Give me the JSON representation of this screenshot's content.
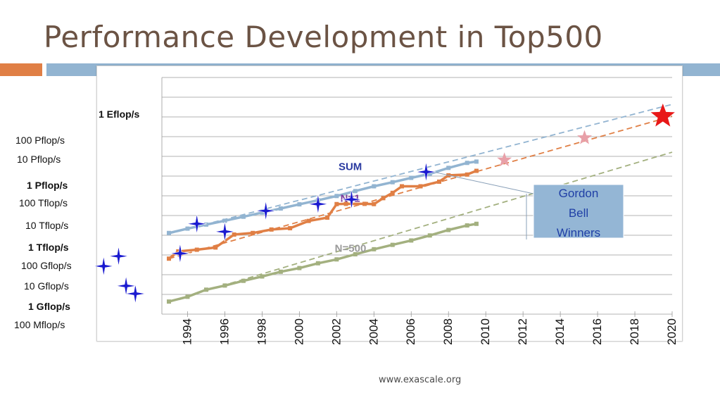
{
  "slide": {
    "title": "Performance Development in Top500",
    "footer": "www.exascale.org"
  },
  "colors": {
    "title": "#6b5344",
    "accent_orange": "#e07f45",
    "accent_blue": "#92b4d1",
    "sum": "#92b4d1",
    "n1": "#e07f45",
    "n500": "#a3b07f",
    "gordon_bell": "#1a1ad0",
    "projection_star": "#e8a0a8",
    "target_star": "#e81818",
    "callout_fill": "#94b6d5",
    "callout_text": "#1f3fa6"
  },
  "chart_data": {
    "type": "line",
    "x_ticks": [
      1994,
      1996,
      1998,
      2000,
      2002,
      2004,
      2006,
      2008,
      2010,
      2012,
      2014,
      2016,
      2018,
      2020
    ],
    "xlim": [
      1993,
      2020
    ],
    "y_scale": "log",
    "y_labels": [
      {
        "text": "1 Eflop/s",
        "value": 1e+18,
        "bold": true
      },
      {
        "text": "100 Pflop/s",
        "value": 1e+17,
        "bold": false
      },
      {
        "text": "10 Pflop/s",
        "value": 1e+16,
        "bold": false
      },
      {
        "text": "1 Pflop/s",
        "value": 1000000000000000.0,
        "bold": true
      },
      {
        "text": "100 Tflop/s",
        "value": 100000000000000.0,
        "bold": false
      },
      {
        "text": "10 Tflop/s",
        "value": 10000000000000.0,
        "bold": false
      },
      {
        "text": "1 Tflop/s",
        "value": 1000000000000.0,
        "bold": true
      },
      {
        "text": "100 Gflop/s",
        "value": 100000000000.0,
        "bold": false
      },
      {
        "text": "10 Gflop/s",
        "value": 10000000000.0,
        "bold": false
      },
      {
        "text": "1 Gflop/s",
        "value": 1000000000.0,
        "bold": true
      },
      {
        "text": "100 Mflop/s",
        "value": 100000000.0,
        "bold": false
      }
    ],
    "grid": true,
    "series": [
      {
        "name": "SUM",
        "x": [
          1993.0,
          1994.0,
          1995.0,
          1996.0,
          1997.0,
          1998.0,
          1999.0,
          2000.0,
          2001.0,
          2002.0,
          2003.0,
          2004.0,
          2005.0,
          2006.0,
          2007.0,
          2008.0,
          2009.0,
          2009.5
        ],
        "y": [
          1200000000000.0,
          2000000000000.0,
          3200000000000.0,
          5000000000000.0,
          8000000000000.0,
          13000000000000.0,
          21000000000000.0,
          34000000000000.0,
          55000000000000.0,
          90000000000000.0,
          160000000000000.0,
          280000000000000.0,
          450000000000000.0,
          750000000000000.0,
          1200000000000000.0,
          2400000000000000.0,
          4300000000000000.0,
          5000000000000000.0
        ]
      },
      {
        "name": "N=1",
        "x": [
          1993.0,
          1993.5,
          1994.5,
          1995.5,
          1996.5,
          1997.5,
          1998.5,
          1999.5,
          2000.5,
          2001.5,
          2002.0,
          2002.5,
          2003.5,
          2004.0,
          2004.5,
          2005.0,
          2005.5,
          2006.5,
          2007.5,
          2008.0,
          2009.0,
          2009.5
        ],
        "y": [
          60000000000.0,
          140000000000.0,
          170000000000.0,
          220000000000.0,
          1000000000000.0,
          1200000000000.0,
          1800000000000.0,
          2100000000000.0,
          4900000000000.0,
          7200000000000.0,
          35000000000000.0,
          36000000000000.0,
          36000000000000.0,
          35000000000000.0,
          70000000000000.0,
          130000000000000.0,
          280000000000000.0,
          280000000000000.0,
          480000000000000.0,
          1000000000000000.0,
          1100000000000000.0,
          1700000000000000.0
        ]
      },
      {
        "name": "N=500",
        "x": [
          1993.0,
          1994.0,
          1995.0,
          1996.0,
          1997.0,
          1998.0,
          1999.0,
          2000.0,
          2001.0,
          2002.0,
          2003.0,
          2004.0,
          2005.0,
          2006.0,
          2007.0,
          2008.0,
          2009.0,
          2009.5
        ],
        "y": [
          400000000.0,
          700000000.0,
          1600000000.0,
          2600000000.0,
          4500000000.0,
          7500000000.0,
          13000000000.0,
          20000000000.0,
          35000000000.0,
          55000000000.0,
          100000000000.0,
          180000000000.0,
          300000000000.0,
          500000000000.0,
          900000000000.0,
          1700000000000.0,
          2900000000000.0,
          3500000000000.0
        ]
      }
    ],
    "projections": [
      {
        "series": "SUM",
        "from": [
          1993.0,
          1100000000000.0
        ],
        "to": [
          2020.0,
          4e+18
        ]
      },
      {
        "series": "N=1",
        "from": [
          1993.0,
          60000000000.0
        ],
        "to": [
          2020.0,
          1e+18
        ]
      },
      {
        "series": "N=500",
        "from": [
          1993.0,
          400000000.0
        ],
        "to": [
          2020.0,
          1.5e+16
        ]
      }
    ],
    "series_labels": [
      {
        "text": "SUM",
        "series": "SUM",
        "x": 2002.1,
        "y": 2800000000000000.0
      },
      {
        "text": "N=1",
        "series": "N=1",
        "x": 2002.2,
        "y": 70000000000000.0
      },
      {
        "text": "N=500",
        "series": "N=500",
        "x": 2001.9,
        "y": 200000000000.0
      }
    ],
    "gordon_bell_winners": [
      {
        "x": 1991.2,
        "y": 1000000000.0
      },
      {
        "x": 1990.7,
        "y": 2500000000.0
      },
      {
        "x": 1989.5,
        "y": 25000000000.0
      },
      {
        "x": 1990.3,
        "y": 80000000000.0
      },
      {
        "x": 1993.6,
        "y": 110000000000.0
      },
      {
        "x": 1994.5,
        "y": 3500000000000.0
      },
      {
        "x": 1996.0,
        "y": 1400000000000.0
      },
      {
        "x": 1998.2,
        "y": 16000000000000.0
      },
      {
        "x": 2001.0,
        "y": 35000000000000.0
      },
      {
        "x": 2002.8,
        "y": 60000000000000.0
      },
      {
        "x": 2006.8,
        "y": 1500000000000000.0
      }
    ],
    "projection_stars": [
      {
        "x": 2011.0,
        "y": 6000000000000000.0
      },
      {
        "x": 2015.3,
        "y": 8e+16
      }
    ],
    "target_star": {
      "x": 2019.5,
      "y": 1e+18
    },
    "callout": {
      "lines": [
        "Gordon",
        "Bell",
        "Winners"
      ]
    }
  }
}
